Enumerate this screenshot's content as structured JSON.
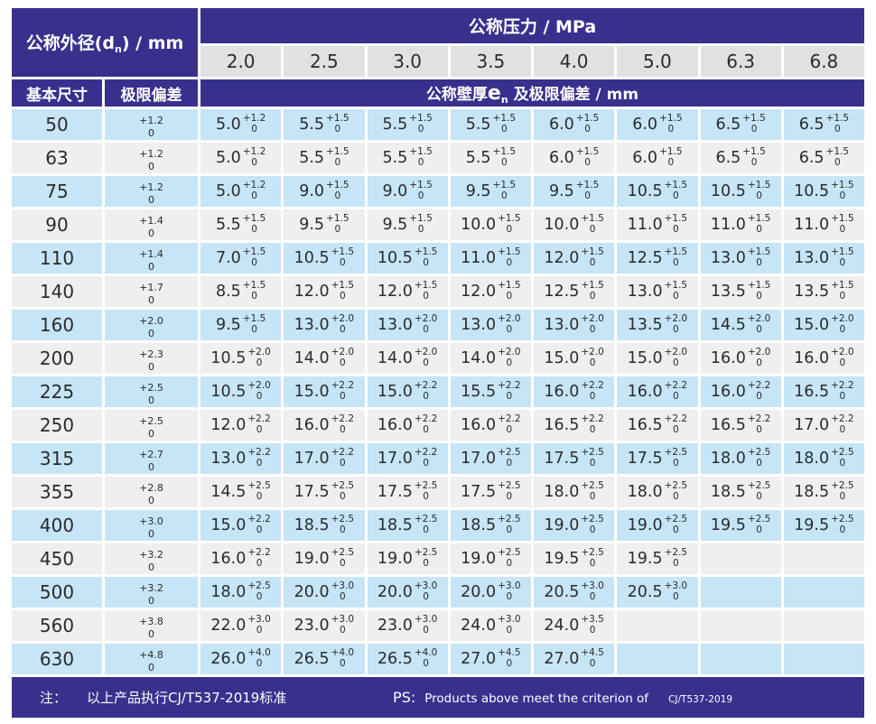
{
  "header": {
    "dn_prefix": "公称外径(d",
    "dn_sub": "n",
    "dn_suffix": ") / mm",
    "pressure_label": "公称压力 / MPa",
    "pressures": [
      "2.0",
      "2.5",
      "3.0",
      "3.5",
      "4.0",
      "5.0",
      "6.3",
      "6.8"
    ],
    "basic_size_label": "基本尺寸",
    "deviation_label": "极限偏差",
    "wall_prefix": "公称壁厚",
    "wall_e": "e",
    "wall_sub": "n",
    "wall_suffix": " 及极限偏差 / mm"
  },
  "rows": [
    {
      "dn": "50",
      "dev": {
        "p": "+1.2",
        "m": "0"
      },
      "cells": [
        {
          "v": "5.0",
          "p": "+1.2",
          "m": "0"
        },
        {
          "v": "5.5",
          "p": "+1.5",
          "m": "0"
        },
        {
          "v": "5.5",
          "p": "+1.5",
          "m": "0"
        },
        {
          "v": "5.5",
          "p": "+1.5",
          "m": "0"
        },
        {
          "v": "6.0",
          "p": "+1.5",
          "m": "0"
        },
        {
          "v": "6.0",
          "p": "+1.5",
          "m": "0"
        },
        {
          "v": "6.5",
          "p": "+1.5",
          "m": "0"
        },
        {
          "v": "6.5",
          "p": "+1.5",
          "m": "0"
        }
      ]
    },
    {
      "dn": "63",
      "dev": {
        "p": "+1.2",
        "m": "0"
      },
      "cells": [
        {
          "v": "5.0",
          "p": "+1.2",
          "m": "0"
        },
        {
          "v": "5.5",
          "p": "+1.5",
          "m": "0"
        },
        {
          "v": "5.5",
          "p": "+1.5",
          "m": "0"
        },
        {
          "v": "5.5",
          "p": "+1.5",
          "m": "0"
        },
        {
          "v": "6.0",
          "p": "+1.5",
          "m": "0"
        },
        {
          "v": "6.0",
          "p": "+1.5",
          "m": "0"
        },
        {
          "v": "6.5",
          "p": "+1.5",
          "m": "0"
        },
        {
          "v": "6.5",
          "p": "+1.5",
          "m": "0"
        }
      ]
    },
    {
      "dn": "75",
      "dev": {
        "p": "+1.2",
        "m": "0"
      },
      "cells": [
        {
          "v": "5.0",
          "p": "+1.2",
          "m": "0"
        },
        {
          "v": "9.0",
          "p": "+1.5",
          "m": "0"
        },
        {
          "v": "9.0",
          "p": "+1.5",
          "m": "0"
        },
        {
          "v": "9.5",
          "p": "+1.5",
          "m": "0"
        },
        {
          "v": "9.5",
          "p": "+1.5",
          "m": "0"
        },
        {
          "v": "10.5",
          "p": "+1.5",
          "m": "0"
        },
        {
          "v": "10.5",
          "p": "+1.5",
          "m": "0"
        },
        {
          "v": "10.5",
          "p": "+1.5",
          "m": "0"
        }
      ]
    },
    {
      "dn": "90",
      "dev": {
        "p": "+1.4",
        "m": "0"
      },
      "cells": [
        {
          "v": "5.5",
          "p": "+1.5",
          "m": "0"
        },
        {
          "v": "9.5",
          "p": "+1.5",
          "m": "0"
        },
        {
          "v": "9.5",
          "p": "+1.5",
          "m": "0"
        },
        {
          "v": "10.0",
          "p": "+1.5",
          "m": "0"
        },
        {
          "v": "10.0",
          "p": "+1.5",
          "m": "0"
        },
        {
          "v": "11.0",
          "p": "+1.5",
          "m": "0"
        },
        {
          "v": "11.0",
          "p": "+1.5",
          "m": "0"
        },
        {
          "v": "11.0",
          "p": "+1.5",
          "m": "0"
        }
      ]
    },
    {
      "dn": "110",
      "dev": {
        "p": "+1.4",
        "m": "0"
      },
      "cells": [
        {
          "v": "7.0",
          "p": "+1.5",
          "m": "0"
        },
        {
          "v": "10.5",
          "p": "+1.5",
          "m": "0"
        },
        {
          "v": "10.5",
          "p": "+1.5",
          "m": "0"
        },
        {
          "v": "11.0",
          "p": "+1.5",
          "m": "0"
        },
        {
          "v": "12.0",
          "p": "+1.5",
          "m": "0"
        },
        {
          "v": "12.5",
          "p": "+1.5",
          "m": "0"
        },
        {
          "v": "13.0",
          "p": "+1.5",
          "m": "0"
        },
        {
          "v": "13.0",
          "p": "+1.5",
          "m": "0"
        }
      ]
    },
    {
      "dn": "140",
      "dev": {
        "p": "+1.7",
        "m": "0"
      },
      "cells": [
        {
          "v": "8.5",
          "p": "+1.5",
          "m": "0"
        },
        {
          "v": "12.0",
          "p": "+1.5",
          "m": "0"
        },
        {
          "v": "12.0",
          "p": "+1.5",
          "m": "0"
        },
        {
          "v": "12.0",
          "p": "+1.5",
          "m": "0"
        },
        {
          "v": "12.5",
          "p": "+1.5",
          "m": "0"
        },
        {
          "v": "13.0",
          "p": "+1.5",
          "m": "0"
        },
        {
          "v": "13.5",
          "p": "+1.5",
          "m": "0"
        },
        {
          "v": "13.5",
          "p": "+1.5",
          "m": "0"
        }
      ]
    },
    {
      "dn": "160",
      "dev": {
        "p": "+2.0",
        "m": "0"
      },
      "cells": [
        {
          "v": "9.5",
          "p": "+1.5",
          "m": "0"
        },
        {
          "v": "13.0",
          "p": "+2.0",
          "m": "0"
        },
        {
          "v": "13.0",
          "p": "+2.0",
          "m": "0"
        },
        {
          "v": "13.0",
          "p": "+2.0",
          "m": "0"
        },
        {
          "v": "13.0",
          "p": "+2.0",
          "m": "0"
        },
        {
          "v": "13.5",
          "p": "+2.0",
          "m": "0"
        },
        {
          "v": "14.5",
          "p": "+2.0",
          "m": "0"
        },
        {
          "v": "15.0",
          "p": "+2.0",
          "m": "0"
        }
      ]
    },
    {
      "dn": "200",
      "dev": {
        "p": "+2.3",
        "m": "0"
      },
      "cells": [
        {
          "v": "10.5",
          "p": "+2.0",
          "m": "0"
        },
        {
          "v": "14.0",
          "p": "+2.0",
          "m": "0"
        },
        {
          "v": "14.0",
          "p": "+2.0",
          "m": "0"
        },
        {
          "v": "14.0",
          "p": "+2.0",
          "m": "0"
        },
        {
          "v": "15.0",
          "p": "+2.0",
          "m": "0"
        },
        {
          "v": "15.0",
          "p": "+2.0",
          "m": "0"
        },
        {
          "v": "16.0",
          "p": "+2.0",
          "m": "0"
        },
        {
          "v": "16.0",
          "p": "+2.0",
          "m": "0"
        }
      ]
    },
    {
      "dn": "225",
      "dev": {
        "p": "+2.5",
        "m": "0"
      },
      "cells": [
        {
          "v": "10.5",
          "p": "+2.0",
          "m": "0"
        },
        {
          "v": "15.0",
          "p": "+2.2",
          "m": "0"
        },
        {
          "v": "15.0",
          "p": "+2.2",
          "m": "0"
        },
        {
          "v": "15.5",
          "p": "+2.2",
          "m": "0"
        },
        {
          "v": "16.0",
          "p": "+2.2",
          "m": "0"
        },
        {
          "v": "16.0",
          "p": "+2.2",
          "m": "0"
        },
        {
          "v": "16.0",
          "p": "+2.2",
          "m": "0"
        },
        {
          "v": "16.5",
          "p": "+2.2",
          "m": "0"
        }
      ]
    },
    {
      "dn": "250",
      "dev": {
        "p": "+2.5",
        "m": "0"
      },
      "cells": [
        {
          "v": "12.0",
          "p": "+2.2",
          "m": "0"
        },
        {
          "v": "16.0",
          "p": "+2.2",
          "m": "0"
        },
        {
          "v": "16.0",
          "p": "+2.2",
          "m": "0"
        },
        {
          "v": "16.0",
          "p": "+2.2",
          "m": "0"
        },
        {
          "v": "16.5",
          "p": "+2.2",
          "m": "0"
        },
        {
          "v": "16.5",
          "p": "+2.2",
          "m": "0"
        },
        {
          "v": "16.5",
          "p": "+2.2",
          "m": "0"
        },
        {
          "v": "17.0",
          "p": "+2.2",
          "m": "0"
        }
      ]
    },
    {
      "dn": "315",
      "dev": {
        "p": "+2.7",
        "m": "0"
      },
      "cells": [
        {
          "v": "13.0",
          "p": "+2.2",
          "m": "0"
        },
        {
          "v": "17.0",
          "p": "+2.2",
          "m": "0"
        },
        {
          "v": "17.0",
          "p": "+2.2",
          "m": "0"
        },
        {
          "v": "17.0",
          "p": "+2.5",
          "m": "0"
        },
        {
          "v": "17.5",
          "p": "+2.5",
          "m": "0"
        },
        {
          "v": "17.5",
          "p": "+2.5",
          "m": "0"
        },
        {
          "v": "18.0",
          "p": "+2.5",
          "m": "0"
        },
        {
          "v": "18.0",
          "p": "+2.5",
          "m": "0"
        }
      ]
    },
    {
      "dn": "355",
      "dev": {
        "p": "+2.8",
        "m": "0"
      },
      "cells": [
        {
          "v": "14.5",
          "p": "+2.5",
          "m": "0"
        },
        {
          "v": "17.5",
          "p": "+2.5",
          "m": "0"
        },
        {
          "v": "17.5",
          "p": "+2.5",
          "m": "0"
        },
        {
          "v": "17.5",
          "p": "+2.5",
          "m": "0"
        },
        {
          "v": "18.0",
          "p": "+2.5",
          "m": "0"
        },
        {
          "v": "18.0",
          "p": "+2.5",
          "m": "0"
        },
        {
          "v": "18.5",
          "p": "+2.5",
          "m": "0"
        },
        {
          "v": "18.5",
          "p": "+2.5",
          "m": "0"
        }
      ]
    },
    {
      "dn": "400",
      "dev": {
        "p": "+3.0",
        "m": "0"
      },
      "cells": [
        {
          "v": "15.0",
          "p": "+2.2",
          "m": "0"
        },
        {
          "v": "18.5",
          "p": "+2.5",
          "m": "0"
        },
        {
          "v": "18.5",
          "p": "+2.5",
          "m": "0"
        },
        {
          "v": "18.5",
          "p": "+2.5",
          "m": "0"
        },
        {
          "v": "19.0",
          "p": "+2.5",
          "m": "0"
        },
        {
          "v": "19.0",
          "p": "+2.5",
          "m": "0"
        },
        {
          "v": "19.5",
          "p": "+2.5",
          "m": "0"
        },
        {
          "v": "19.5",
          "p": "+2.5",
          "m": "0"
        }
      ]
    },
    {
      "dn": "450",
      "dev": {
        "p": "+3.2",
        "m": "0"
      },
      "cells": [
        {
          "v": "16.0",
          "p": "+2.2",
          "m": "0"
        },
        {
          "v": "19.0",
          "p": "+2.5",
          "m": "0"
        },
        {
          "v": "19.0",
          "p": "+2.5",
          "m": "0"
        },
        {
          "v": "19.0",
          "p": "+2.5",
          "m": "0"
        },
        {
          "v": "19.5",
          "p": "+2.5",
          "m": "0"
        },
        {
          "v": "19.5",
          "p": "+2.5",
          "m": "0"
        },
        null,
        null
      ]
    },
    {
      "dn": "500",
      "dev": {
        "p": "+3.2",
        "m": "0"
      },
      "cells": [
        {
          "v": "18.0",
          "p": "+2.5",
          "m": "0"
        },
        {
          "v": "20.0",
          "p": "+3.0",
          "m": "0"
        },
        {
          "v": "20.0",
          "p": "+3.0",
          "m": "0"
        },
        {
          "v": "20.0",
          "p": "+3.0",
          "m": "0"
        },
        {
          "v": "20.5",
          "p": "+3.0",
          "m": "0"
        },
        {
          "v": "20.5",
          "p": "+3.0",
          "m": "0"
        },
        null,
        null
      ]
    },
    {
      "dn": "560",
      "dev": {
        "p": "+3.8",
        "m": "0"
      },
      "cells": [
        {
          "v": "22.0",
          "p": "+3.0",
          "m": "0"
        },
        {
          "v": "23.0",
          "p": "+3.0",
          "m": "0"
        },
        {
          "v": "23.0",
          "p": "+3.0",
          "m": "0"
        },
        {
          "v": "24.0",
          "p": "+3.0",
          "m": "0"
        },
        {
          "v": "24.0",
          "p": "+3.5",
          "m": "0"
        },
        null,
        null,
        null
      ]
    },
    {
      "dn": "630",
      "dev": {
        "p": "+4.8",
        "m": "0"
      },
      "cells": [
        {
          "v": "26.0",
          "p": "+4.0",
          "m": "0"
        },
        {
          "v": "26.5",
          "p": "+4.0",
          "m": "0"
        },
        {
          "v": "26.5",
          "p": "+4.0",
          "m": "0"
        },
        {
          "v": "27.0",
          "p": "+4.5",
          "m": "0"
        },
        {
          "v": "27.0",
          "p": "+4.5",
          "m": "0"
        },
        null,
        null,
        null
      ]
    }
  ],
  "footer": {
    "note_label": "注：",
    "note_text": "以上产品执行CJ/T537-2019标准",
    "ps_label": "PS:",
    "ps_text": "Products above meet the criterion of",
    "ps_standard": "CJ/T537-2019"
  },
  "colors": {
    "header_purple": "#39308e",
    "row_blue": "#c6e5f7",
    "row_gray": "#efefef",
    "pressure_cell_gray": "#e1e1e1",
    "text_dark": "#2b2b2b",
    "text_white": "#ffffff"
  }
}
